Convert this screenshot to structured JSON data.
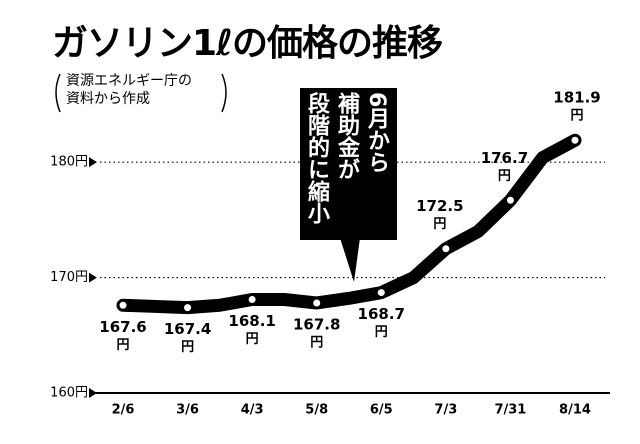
{
  "chart_data": {
    "type": "line",
    "title": "ガソリン1ℓの価格の推移",
    "subtitle": [
      "資源エネルギー庁の",
      "資料から作成"
    ],
    "annotation": [
      "6月から",
      "補助金が",
      "段階的に縮小"
    ],
    "unit": "円",
    "categories": [
      "2/6",
      null,
      "3/6",
      null,
      "4/3",
      null,
      "5/8",
      null,
      "6/5",
      null,
      "7/3",
      null,
      "7/31",
      null,
      "8/14"
    ],
    "values": [
      167.6,
      167.5,
      167.4,
      167.6,
      168.1,
      168.1,
      167.8,
      168.2,
      168.7,
      170.0,
      172.5,
      174.0,
      176.7,
      180.4,
      181.9
    ],
    "color": "#000000",
    "ylim": [
      160,
      184
    ],
    "yticks": [
      {
        "value": 160,
        "label": "160円"
      },
      {
        "value": 170,
        "label": "170円"
      },
      {
        "value": 180,
        "label": "180円"
      }
    ],
    "grid": true
  }
}
